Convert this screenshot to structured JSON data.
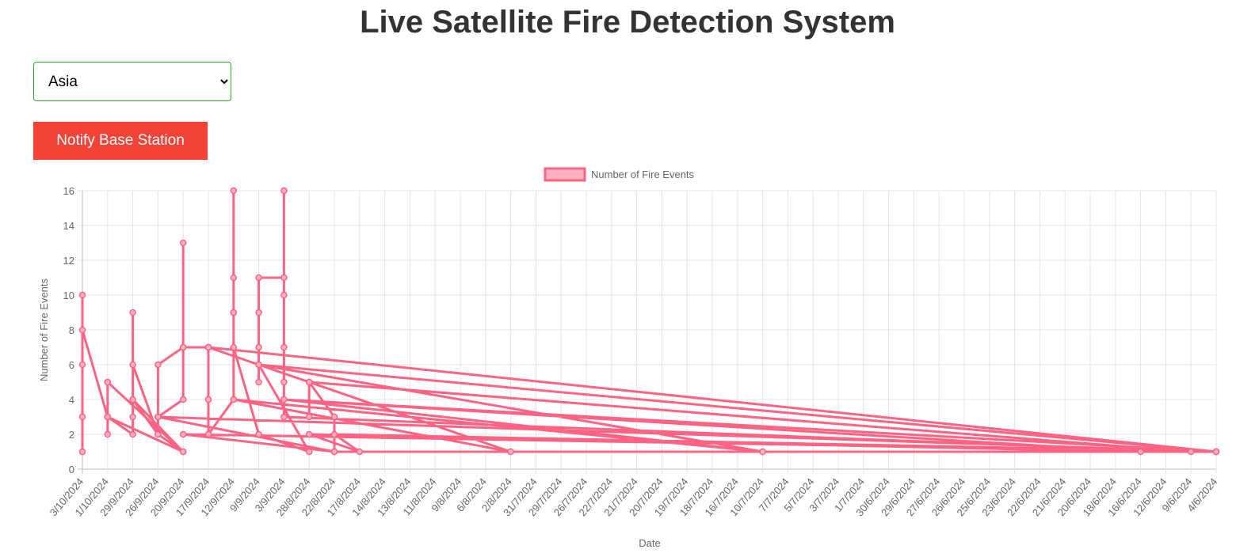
{
  "header": {
    "title": "Live Satellite Fire Detection System"
  },
  "controls": {
    "region": "Asia",
    "button": "Notify Base Station"
  },
  "chart_data": {
    "type": "line",
    "xlabel": "Date",
    "ylabel": "Number of Fire Events",
    "categories": [
      "3/10/2024",
      "1/10/2024",
      "29/9/2024",
      "26/9/2024",
      "20/9/2024",
      "17/9/2024",
      "12/9/2024",
      "9/9/2024",
      "3/9/2024",
      "28/8/2024",
      "22/8/2024",
      "17/8/2024",
      "14/8/2024",
      "13/8/2024",
      "11/8/2024",
      "9/8/2024",
      "6/8/2024",
      "2/8/2024",
      "31/7/2024",
      "29/7/2024",
      "26/7/2024",
      "22/7/2024",
      "21/7/2024",
      "20/7/2024",
      "19/7/2024",
      "18/7/2024",
      "16/7/2024",
      "10/7/2024",
      "7/7/2024",
      "5/7/2024",
      "3/7/2024",
      "1/7/2024",
      "30/6/2024",
      "29/6/2024",
      "27/6/2024",
      "26/6/2024",
      "25/6/2024",
      "23/6/2024",
      "22/6/2024",
      "21/6/2024",
      "20/6/2024",
      "18/6/2024",
      "16/6/2024",
      "12/6/2024",
      "9/6/2024",
      "4/6/2024"
    ],
    "x": [
      "3/10/2024",
      "3/10/2024",
      "3/10/2024",
      "3/10/2024",
      "3/10/2024",
      "1/10/2024",
      "1/10/2024",
      "1/10/2024",
      "20/9/2024",
      "1/10/2024",
      "1/10/2024",
      "1/10/2024",
      "29/9/2024",
      "29/9/2024",
      "29/9/2024",
      "29/9/2024",
      "26/9/2024",
      "29/9/2024",
      "20/9/2024",
      "26/9/2024",
      "26/9/2024",
      "20/9/2024",
      "26/9/2024",
      "22/8/2024",
      "26/9/2024",
      "26/9/2024",
      "20/9/2024",
      "20/9/2024",
      "20/9/2024",
      "20/9/2024",
      "17/9/2024",
      "17/9/2024",
      "17/9/2024",
      "17/9/2024",
      "12/9/2024",
      "12/9/2024",
      "12/9/2024",
      "12/9/2024",
      "12/9/2024",
      "12/9/2024",
      "12/9/2024",
      "9/9/2024",
      "28/8/2024",
      "9/9/2024",
      "9/9/2024",
      "9/9/2024",
      "9/9/2024",
      "9/9/2024",
      "3/9/2024",
      "3/9/2024",
      "3/9/2024",
      "3/9/2024",
      "3/9/2024",
      "3/9/2024",
      "3/9/2024",
      "9/6/2024",
      "28/8/2024",
      "28/8/2024",
      "28/8/2024",
      "2/8/2024",
      "28/8/2024",
      "22/8/2024",
      "22/8/2024",
      "4/6/2024",
      "22/8/2024",
      "17/8/2024",
      "28/8/2024",
      "16/6/2024",
      "3/9/2024",
      "10/7/2024",
      "9/9/2024",
      "4/6/2024",
      "17/9/2024",
      "2/8/2024",
      "12/9/2024",
      "10/7/2024",
      "3/9/2024",
      "4/6/2024",
      "26/9/2024",
      "22/8/2024",
      "20/9/2024",
      "4/6/2024"
    ],
    "series": [
      {
        "name": "Number of Fire Events",
        "color": "#ff6384",
        "fill": "#ffb1c1",
        "values": [
          1,
          3,
          10,
          6,
          8,
          3,
          5,
          3,
          1,
          5,
          2,
          3,
          2,
          9,
          3,
          6,
          2,
          4,
          1,
          2,
          3,
          4,
          3,
          1,
          3,
          6,
          7,
          13,
          4,
          7,
          7,
          4,
          7,
          2,
          4,
          9,
          16,
          11,
          9,
          4,
          7,
          2,
          1,
          6,
          9,
          7,
          5,
          11,
          11,
          16,
          5,
          16,
          10,
          7,
          3,
          1,
          5,
          3,
          5,
          1,
          5,
          3,
          1,
          1,
          2,
          1,
          2,
          1,
          4,
          1,
          6,
          1,
          7,
          1,
          4,
          1,
          4,
          1,
          3,
          1,
          2,
          1
        ]
      }
    ],
    "ylim": [
      0,
      16
    ],
    "yticks": [
      0,
      2,
      4,
      6,
      8,
      10,
      12,
      14,
      16
    ],
    "grid": true
  }
}
